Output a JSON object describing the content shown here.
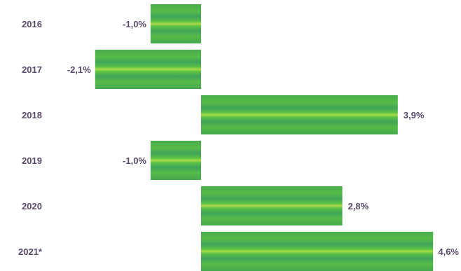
{
  "chart_data": {
    "type": "bar",
    "orientation": "horizontal",
    "categories": [
      "2016",
      "2017",
      "2018",
      "2019",
      "2020",
      "2021*"
    ],
    "values": [
      -1.0,
      -2.1,
      3.9,
      -1.0,
      2.8,
      4.6
    ],
    "value_labels": [
      "-1,0%",
      "-2,1%",
      "3,9%",
      "-1,0%",
      "2,8%",
      "4,6%"
    ],
    "xlim": [
      -3.5,
      6.0
    ],
    "grid": false,
    "legend": "none",
    "colors": {
      "bar": "#4cb34a",
      "bar_stripe_light": "#9ed94a",
      "bar_stripe_dark": "#3e9f52",
      "text": "#5a4a6a"
    }
  }
}
